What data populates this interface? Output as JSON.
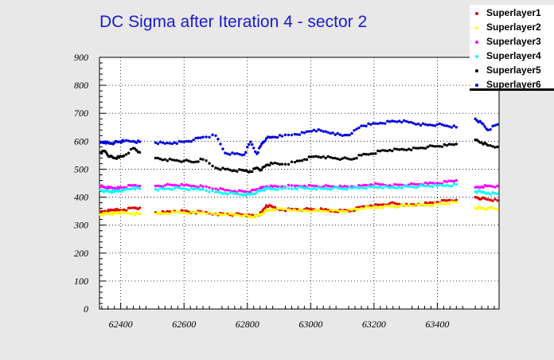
{
  "chart_data": {
    "type": "scatter",
    "title": "DC Sigma after Iteration 4 - sector 2",
    "xlabel": "",
    "ylabel": "",
    "xlim": [
      62333,
      63595
    ],
    "ylim": [
      0,
      900
    ],
    "x_ticks": [
      62400,
      62600,
      62800,
      63000,
      63200,
      63400
    ],
    "y_ticks": [
      0,
      100,
      200,
      300,
      400,
      500,
      600,
      700,
      800,
      900
    ],
    "grid": true,
    "legend_position": "top-right",
    "series": [
      {
        "name": "Superlayer1",
        "color": "#e00000",
        "approx_values": "~340-360 for x<63150, rising to ~370-390 near 63200-63600",
        "x": [
          62336,
          62350,
          62365,
          62380,
          62395,
          62410,
          62440,
          62460,
          62510,
          62540,
          62570,
          62600,
          62630,
          62660,
          62700,
          62730,
          62760,
          62790,
          62810,
          62830,
          62845,
          62860,
          62880,
          62910,
          62950,
          62980,
          63010,
          63040,
          63070,
          63100,
          63130,
          63160,
          63190,
          63220,
          63250,
          63280,
          63310,
          63340,
          63370,
          63400,
          63430,
          63460,
          63520,
          63540,
          63560,
          63590
        ],
        "y": [
          345,
          350,
          352,
          355,
          352,
          355,
          362,
          362,
          345,
          345,
          350,
          350,
          345,
          347,
          340,
          340,
          338,
          337,
          332,
          335,
          345,
          370,
          365,
          355,
          357,
          356,
          356,
          355,
          350,
          352,
          352,
          365,
          370,
          372,
          378,
          375,
          370,
          375,
          378,
          382,
          388,
          390,
          400,
          395,
          392,
          388
        ]
      },
      {
        "name": "Superlayer2",
        "color": "#ffff00",
        "approx_values": "~335-385",
        "x": [
          62336,
          62350,
          62365,
          62380,
          62395,
          62410,
          62440,
          62460,
          62510,
          62540,
          62570,
          62600,
          62630,
          62660,
          62700,
          62730,
          62760,
          62790,
          62810,
          62830,
          62845,
          62860,
          62880,
          62910,
          62950,
          62980,
          63010,
          63040,
          63070,
          63100,
          63130,
          63160,
          63190,
          63220,
          63250,
          63280,
          63310,
          63340,
          63370,
          63400,
          63430,
          63460,
          63520,
          63540,
          63560,
          63590
        ],
        "y": [
          338,
          340,
          342,
          342,
          345,
          344,
          342,
          340,
          340,
          342,
          345,
          345,
          344,
          346,
          338,
          340,
          337,
          335,
          330,
          332,
          340,
          352,
          355,
          358,
          354,
          352,
          352,
          350,
          352,
          350,
          355,
          360,
          362,
          365,
          368,
          368,
          370,
          372,
          372,
          375,
          378,
          382,
          362,
          360,
          360,
          358
        ]
      },
      {
        "name": "Superlayer3",
        "color": "#ff00ff",
        "approx_values": "~420-460",
        "x": [
          62336,
          62350,
          62365,
          62380,
          62395,
          62410,
          62440,
          62460,
          62510,
          62540,
          62570,
          62600,
          62630,
          62660,
          62700,
          62730,
          62760,
          62790,
          62810,
          62830,
          62845,
          62860,
          62880,
          62910,
          62950,
          62980,
          63010,
          63040,
          63070,
          63100,
          63130,
          63160,
          63190,
          63220,
          63250,
          63280,
          63310,
          63340,
          63370,
          63400,
          63430,
          63460,
          63520,
          63540,
          63560,
          63590
        ],
        "y": [
          438,
          435,
          433,
          432,
          433,
          435,
          442,
          440,
          440,
          442,
          443,
          442,
          440,
          438,
          430,
          425,
          422,
          420,
          420,
          428,
          432,
          438,
          438,
          438,
          440,
          440,
          440,
          438,
          438,
          436,
          438,
          440,
          445,
          445,
          442,
          444,
          444,
          446,
          448,
          450,
          455,
          460,
          435,
          438,
          440,
          440
        ]
      },
      {
        "name": "Superlayer4",
        "color": "#00ffff",
        "approx_values": "~410-450",
        "x": [
          62336,
          62350,
          62365,
          62380,
          62395,
          62410,
          62440,
          62460,
          62510,
          62540,
          62570,
          62600,
          62630,
          62660,
          62700,
          62730,
          62760,
          62790,
          62810,
          62830,
          62845,
          62860,
          62880,
          62910,
          62950,
          62980,
          63010,
          63040,
          63070,
          63100,
          63130,
          63160,
          63190,
          63220,
          63250,
          63280,
          63310,
          63340,
          63370,
          63400,
          63430,
          63460,
          63520,
          63540,
          63560,
          63590
        ],
        "y": [
          425,
          422,
          420,
          420,
          423,
          425,
          432,
          430,
          428,
          430,
          432,
          430,
          428,
          428,
          418,
          414,
          412,
          410,
          410,
          418,
          425,
          430,
          430,
          430,
          432,
          432,
          432,
          430,
          432,
          430,
          432,
          434,
          436,
          436,
          434,
          436,
          438,
          438,
          440,
          440,
          442,
          445,
          420,
          418,
          415,
          412
        ]
      },
      {
        "name": "Superlayer5",
        "color": "#000000",
        "approx_values": "~490-610",
        "x": [
          62336,
          62350,
          62365,
          62380,
          62395,
          62410,
          62440,
          62460,
          62510,
          62540,
          62570,
          62600,
          62630,
          62660,
          62700,
          62730,
          62760,
          62790,
          62810,
          62830,
          62845,
          62860,
          62880,
          62910,
          62950,
          62980,
          63010,
          63040,
          63070,
          63100,
          63130,
          63160,
          63190,
          63220,
          63250,
          63280,
          63310,
          63340,
          63370,
          63400,
          63430,
          63460,
          63520,
          63540,
          63560,
          63590
        ],
        "y": [
          560,
          565,
          545,
          540,
          542,
          548,
          575,
          560,
          540,
          535,
          532,
          530,
          525,
          535,
          505,
          500,
          495,
          495,
          492,
          505,
          498,
          515,
          520,
          518,
          525,
          535,
          545,
          545,
          540,
          538,
          535,
          550,
          555,
          565,
          568,
          570,
          572,
          575,
          580,
          582,
          585,
          590,
          605,
          595,
          585,
          580
        ]
      },
      {
        "name": "Superlayer6",
        "color": "#0000dd",
        "approx_values": "~560-690",
        "x": [
          62336,
          62350,
          62365,
          62380,
          62395,
          62410,
          62440,
          62460,
          62510,
          62540,
          62570,
          62600,
          62630,
          62660,
          62700,
          62730,
          62760,
          62790,
          62810,
          62830,
          62845,
          62860,
          62880,
          62910,
          62950,
          62980,
          63010,
          63040,
          63070,
          63100,
          63130,
          63160,
          63190,
          63220,
          63250,
          63280,
          63310,
          63340,
          63370,
          63400,
          63430,
          63460,
          63520,
          63540,
          63560,
          63590
        ],
        "y": [
          595,
          598,
          592,
          595,
          598,
          600,
          600,
          598,
          595,
          592,
          595,
          598,
          605,
          615,
          620,
          558,
          555,
          552,
          598,
          555,
          590,
          610,
          615,
          618,
          625,
          630,
          640,
          635,
          630,
          620,
          628,
          655,
          660,
          665,
          670,
          672,
          668,
          662,
          658,
          660,
          655,
          650,
          680,
          665,
          640,
          660
        ]
      }
    ]
  }
}
